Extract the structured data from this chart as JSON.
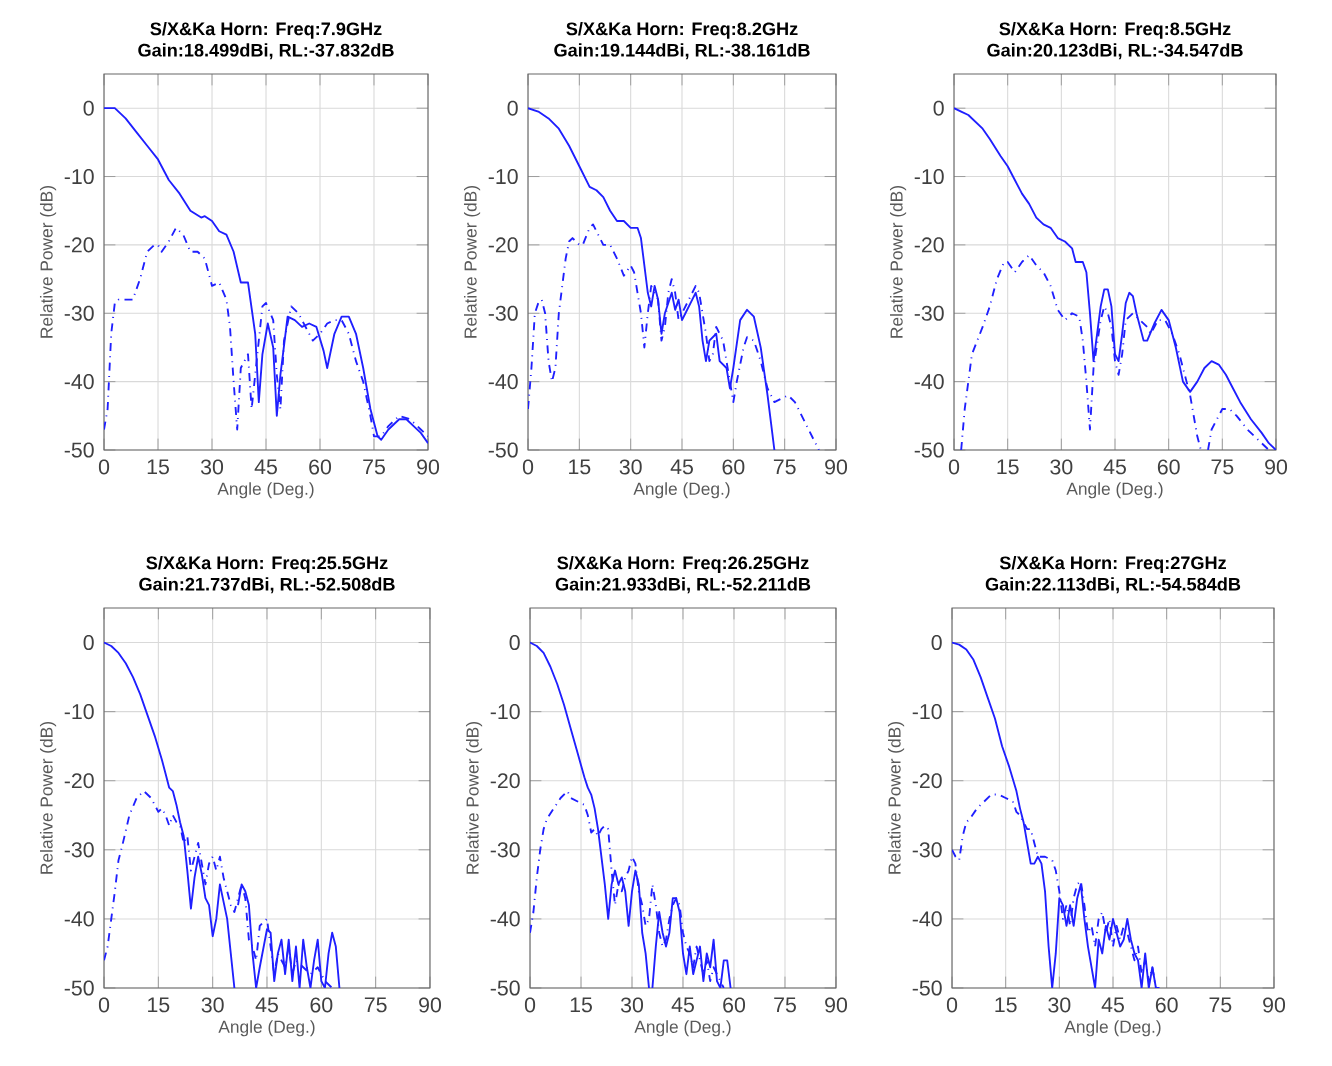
{
  "chart_data": [
    {
      "type": "line",
      "title": "S/X&Ka Horn: Freq:7.9GHz",
      "subtitle": "Gain:18.499dBi, RL:-37.832dB",
      "xlabel": "Angle (Deg.)",
      "ylabel": "Relative Power (dB)",
      "xlim": [
        0,
        90
      ],
      "ylim": [
        -50,
        5
      ],
      "xticks": [
        0,
        15,
        30,
        45,
        60,
        75,
        90
      ],
      "yticks": [
        -50,
        -40,
        -30,
        -20,
        -10,
        0
      ],
      "grid": true,
      "series": [
        {
          "color": "#1f1fff",
          "line_style": "solid",
          "x": [
            0,
            3,
            6,
            9,
            12,
            15,
            18,
            21,
            24,
            27,
            28,
            30,
            32,
            34,
            36,
            38,
            40,
            42,
            43,
            44,
            45.5,
            47,
            48,
            49,
            51,
            53,
            55,
            57,
            59,
            61,
            62,
            64,
            66,
            68,
            70,
            72,
            74,
            76,
            77,
            79,
            82,
            84,
            86,
            88,
            90
          ],
          "values": [
            0,
            0,
            -1.5,
            -3.5,
            -5.5,
            -7.5,
            -10.5,
            -12.5,
            -15,
            -16,
            -15.8,
            -16.5,
            -18,
            -18.5,
            -21,
            -25.5,
            -25.5,
            -33,
            -43,
            -36,
            -31.5,
            -35,
            -45,
            -39,
            -30.5,
            -31,
            -32,
            -31.5,
            -32,
            -35.5,
            -38,
            -33,
            -30.5,
            -30.5,
            -33,
            -38,
            -44,
            -48,
            -48.5,
            -47,
            -45.5,
            -45.5,
            -46.5,
            -47.5,
            -49
          ]
        },
        {
          "color": "#1f1fff",
          "line_style": "dashed",
          "x": [
            0,
            1,
            2,
            3,
            4,
            6,
            8,
            10,
            12,
            14,
            15,
            16,
            18,
            20,
            22,
            24,
            26,
            28,
            30,
            32,
            34,
            35,
            36,
            37,
            38,
            40,
            41,
            42,
            44,
            45,
            47,
            48,
            49,
            50,
            52,
            54,
            56,
            58,
            60,
            62,
            64,
            66,
            68,
            70,
            72,
            74,
            75,
            77,
            79,
            82,
            85,
            88,
            90
          ],
          "values": [
            -47,
            -44,
            -33,
            -28.5,
            -28,
            -28,
            -28,
            -25,
            -21,
            -20,
            -20,
            -21,
            -19.5,
            -17.5,
            -18.5,
            -21,
            -21,
            -22,
            -26,
            -25.5,
            -28,
            -32,
            -40,
            -47,
            -38,
            -36,
            -44,
            -39,
            -29,
            -28.5,
            -31,
            -39,
            -44,
            -34,
            -29,
            -30,
            -32,
            -34,
            -33,
            -31.5,
            -31,
            -31,
            -33,
            -37,
            -40,
            -45,
            -48,
            -48,
            -46.5,
            -45,
            -45.5,
            -47,
            -48
          ]
        }
      ]
    },
    {
      "type": "line",
      "title": "S/X&Ka Horn: Freq:8.2GHz",
      "subtitle": "Gain:19.144dBi, RL:-38.161dB",
      "xlabel": "Angle (Deg.)",
      "ylabel": "Relative Power (dB)",
      "xlim": [
        0,
        90
      ],
      "ylim": [
        -50,
        5
      ],
      "xticks": [
        0,
        15,
        30,
        45,
        60,
        75,
        90
      ],
      "yticks": [
        -50,
        -40,
        -30,
        -20,
        -10,
        0
      ],
      "grid": true,
      "series": [
        {
          "color": "#1f1fff",
          "line_style": "solid",
          "x": [
            0,
            3,
            6,
            9,
            12,
            15,
            18,
            20,
            22,
            24,
            26,
            28,
            30,
            32,
            33,
            35,
            36,
            37,
            38,
            39,
            40,
            42,
            43,
            44,
            45,
            46,
            48,
            49,
            50,
            51,
            52,
            53,
            55,
            56,
            58,
            59,
            60,
            62,
            64,
            66,
            68,
            70,
            71,
            72
          ],
          "values": [
            0,
            -0.5,
            -1.5,
            -3,
            -5.5,
            -8.5,
            -11.5,
            -12,
            -13,
            -15,
            -16.5,
            -16.5,
            -17.5,
            -17.5,
            -19,
            -27,
            -29,
            -26,
            -28,
            -33,
            -30,
            -27,
            -29.5,
            -28,
            -31,
            -30,
            -28,
            -27,
            -29,
            -34,
            -37,
            -34,
            -33,
            -37,
            -38,
            -41,
            -38,
            -31,
            -29.5,
            -30.5,
            -35,
            -42,
            -46,
            -50
          ]
        },
        {
          "color": "#1f1fff",
          "line_style": "dashed",
          "x": [
            0,
            1,
            2,
            3,
            4,
            5,
            6,
            7,
            8,
            9,
            11,
            12,
            13,
            15,
            16,
            18,
            19,
            20,
            22,
            24,
            26,
            28,
            30,
            31,
            33,
            34,
            35,
            36,
            38,
            39,
            40,
            41,
            42,
            43,
            44,
            45,
            47,
            49,
            50,
            51,
            52,
            53,
            54,
            55,
            57,
            59,
            60,
            61,
            63,
            64,
            66,
            68,
            70,
            72,
            74,
            76,
            78,
            80,
            82,
            84,
            85
          ],
          "values": [
            -44,
            -38,
            -30,
            -28.5,
            -28,
            -30,
            -37,
            -40,
            -38,
            -30,
            -22,
            -19.5,
            -19,
            -20,
            -20,
            -17.5,
            -17,
            -18,
            -20,
            -20,
            -22,
            -24.5,
            -23,
            -24,
            -30,
            -35,
            -30,
            -26,
            -28,
            -34,
            -32,
            -27,
            -25,
            -27,
            -31,
            -30,
            -28,
            -26,
            -27,
            -30,
            -33,
            -37,
            -36,
            -32,
            -34,
            -40,
            -43,
            -40,
            -35,
            -33.5,
            -34,
            -37,
            -41,
            -43,
            -42.5,
            -42,
            -43,
            -45,
            -47,
            -49,
            -50
          ]
        }
      ]
    },
    {
      "type": "line",
      "title": "S/X&Ka Horn: Freq:8.5GHz",
      "subtitle": "Gain:20.123dBi, RL:-34.547dB",
      "xlabel": "Angle (Deg.)",
      "ylabel": "Relative Power (dB)",
      "xlim": [
        0,
        90
      ],
      "ylim": [
        -50,
        5
      ],
      "xticks": [
        0,
        15,
        30,
        45,
        60,
        75,
        90
      ],
      "yticks": [
        -50,
        -40,
        -30,
        -20,
        -10,
        0
      ],
      "grid": true,
      "series": [
        {
          "color": "#1f1fff",
          "line_style": "solid",
          "x": [
            0,
            2,
            4,
            6,
            8,
            10,
            13,
            15,
            17,
            19,
            21,
            23,
            25,
            27,
            29,
            31,
            33,
            34,
            36,
            37,
            38,
            39,
            40,
            41,
            42,
            43,
            44,
            45,
            46,
            47,
            48,
            49,
            50,
            51,
            53,
            54,
            56,
            58,
            60,
            62,
            64,
            66,
            68,
            70,
            72,
            74,
            76,
            78,
            80,
            83,
            86,
            88,
            90
          ],
          "values": [
            0,
            -0.5,
            -1,
            -2,
            -3,
            -4.5,
            -7,
            -8.5,
            -10.5,
            -12.5,
            -14,
            -16,
            -17,
            -17.5,
            -19,
            -19.5,
            -20.5,
            -22.5,
            -22.5,
            -24,
            -30,
            -37,
            -33,
            -29,
            -26.5,
            -26.5,
            -29,
            -36,
            -37,
            -33,
            -28.5,
            -27,
            -27.5,
            -30,
            -34,
            -34,
            -31.5,
            -29.5,
            -31,
            -35,
            -40,
            -41.5,
            -40,
            -38,
            -37,
            -37.5,
            -39,
            -41,
            -43,
            -45.5,
            -47.5,
            -49,
            -50
          ]
        },
        {
          "color": "#1f1fff",
          "line_style": "dashed",
          "x": [
            2,
            3,
            5,
            8,
            10,
            12,
            14,
            15,
            17,
            19,
            21,
            23,
            25,
            27,
            29,
            31,
            33,
            35,
            36,
            37,
            38,
            39,
            41,
            42,
            43,
            44,
            45,
            46,
            47,
            48,
            50,
            52,
            54,
            55,
            57,
            59,
            61,
            63,
            65,
            66,
            67,
            68,
            69,
            70,
            71,
            72,
            74,
            75,
            77,
            79,
            82,
            85,
            88
          ],
          "values": [
            -50,
            -44,
            -36,
            -32,
            -29,
            -25,
            -22.5,
            -22.5,
            -24,
            -22.5,
            -21.5,
            -23,
            -24,
            -26,
            -29.5,
            -31,
            -30,
            -30.5,
            -34,
            -40,
            -47,
            -38,
            -31,
            -29,
            -30,
            -32,
            -37,
            -39,
            -36,
            -31,
            -30,
            -31,
            -32,
            -33,
            -31,
            -31,
            -33,
            -36,
            -40,
            -42,
            -45,
            -48,
            -50,
            null,
            -50,
            -47,
            -45,
            -44,
            -44,
            -45,
            -47,
            -48.5,
            -50
          ]
        }
      ]
    },
    {
      "type": "line",
      "title": "S/X&Ka Horn: Freq:25.5GHz",
      "subtitle": "Gain:21.737dBi, RL:-52.508dB",
      "xlabel": "Angle (Deg.)",
      "ylabel": "Relative Power (dB)",
      "xlim": [
        0,
        90
      ],
      "ylim": [
        -50,
        5
      ],
      "xticks": [
        0,
        15,
        30,
        45,
        60,
        75,
        90
      ],
      "yticks": [
        -50,
        -40,
        -30,
        -20,
        -10,
        0
      ],
      "grid": true,
      "series": [
        {
          "color": "#1f1fff",
          "line_style": "solid",
          "x": [
            0,
            2,
            4,
            6,
            8,
            10,
            12,
            14,
            16,
            17,
            18,
            19,
            20,
            21,
            22,
            23,
            24,
            25,
            26,
            27,
            28,
            29,
            30,
            31,
            32,
            33,
            34,
            35,
            36,
            36.5,
            37,
            38,
            39,
            40,
            41,
            42,
            43,
            45,
            46,
            47,
            48,
            49,
            50,
            51,
            52,
            53,
            54,
            55,
            56,
            57,
            58,
            59,
            60,
            61,
            62,
            63,
            64,
            65
          ],
          "values": [
            0,
            -0.5,
            -1.5,
            -3,
            -5,
            -7.5,
            -10.5,
            -13.5,
            -17,
            -19,
            -21,
            -21.5,
            -23.5,
            -26,
            -28,
            -33,
            -38.5,
            -34,
            -31,
            -33.5,
            -37,
            -38,
            -42.5,
            -40,
            -35,
            -37.5,
            -40,
            -45,
            -50,
            null,
            -38,
            -35,
            -36,
            -38,
            -45,
            -50,
            -47,
            -41.5,
            -42,
            -49,
            -45,
            -43,
            -48,
            -43,
            -49,
            -44,
            -50,
            -43,
            -47,
            -50,
            -46,
            -43,
            -49,
            -50,
            -45,
            -42,
            -44,
            -50
          ]
        },
        {
          "color": "#1f1fff",
          "line_style": "dashed",
          "x": [
            0,
            1,
            2,
            3,
            4,
            5,
            7,
            9,
            11,
            13,
            15,
            16,
            17,
            18,
            19,
            20,
            21,
            22,
            23,
            24,
            25,
            26,
            27,
            28,
            29,
            30,
            31,
            32,
            33,
            34,
            35,
            36,
            37,
            38,
            39,
            40,
            41,
            42,
            43,
            45,
            46,
            47,
            48,
            50,
            51,
            52,
            53,
            55,
            57,
            59,
            61,
            63
          ],
          "values": [
            -46,
            -44,
            -40,
            -36,
            -31.5,
            -29.5,
            -25,
            -22.5,
            -21.5,
            -22.5,
            -24.5,
            -24,
            -25,
            -26.5,
            -25,
            -26,
            -26.5,
            -29,
            -28,
            -33,
            -31,
            -29,
            -32,
            -35,
            -32,
            -31,
            -33,
            -31,
            -34,
            -36,
            -38,
            -39,
            -37,
            -35,
            -37,
            -43,
            -44,
            -46,
            -41,
            -40,
            -44,
            -48,
            -45,
            -47,
            -44,
            -48,
            -46,
            -47,
            -48,
            -47,
            -49,
            -50
          ]
        }
      ]
    },
    {
      "type": "line",
      "title": "S/X&Ka Horn: Freq:26.25GHz",
      "subtitle": "Gain:21.933dBi, RL:-52.211dB",
      "xlabel": "Angle (Deg.)",
      "ylabel": "Relative Power (dB)",
      "xlim": [
        0,
        90
      ],
      "ylim": [
        -50,
        5
      ],
      "xticks": [
        0,
        15,
        30,
        45,
        60,
        75,
        90
      ],
      "yticks": [
        -50,
        -40,
        -30,
        -20,
        -10,
        0
      ],
      "grid": true,
      "series": [
        {
          "color": "#1f1fff",
          "line_style": "solid",
          "x": [
            0,
            2,
            4,
            6,
            8,
            10,
            12,
            14,
            16,
            17,
            18,
            19,
            20,
            21,
            22,
            23,
            24,
            25,
            26,
            27,
            28,
            29,
            30,
            31,
            32,
            33,
            34,
            35,
            35.5,
            36,
            37,
            38,
            39,
            40,
            41,
            42,
            43,
            44,
            45,
            46,
            47,
            48,
            49,
            50,
            51,
            52,
            53,
            54,
            55,
            56,
            57,
            58,
            59
          ],
          "values": [
            0,
            -0.5,
            -1.5,
            -3.5,
            -6,
            -9,
            -12.5,
            -16,
            -19.5,
            -21,
            -22,
            -24,
            -27,
            -31,
            -35,
            -40,
            -35,
            -33,
            -35,
            -34,
            -36,
            -41,
            -36,
            -33,
            -35,
            -42,
            -45,
            -50,
            null,
            -50,
            -44,
            -39,
            -42,
            -44,
            -42,
            -37,
            -37,
            -39,
            -45,
            -48,
            -44,
            -48,
            -46,
            -44,
            -49,
            -45,
            -47,
            -43,
            -49,
            -50,
            -46,
            -46,
            -50
          ]
        },
        {
          "color": "#1f1fff",
          "line_style": "dashed",
          "x": [
            0,
            1,
            2,
            3,
            4,
            5,
            7,
            9,
            11,
            12,
            14,
            16,
            17,
            18,
            19,
            20,
            21,
            22,
            23,
            24,
            25,
            26,
            27,
            28,
            29,
            30,
            31,
            32,
            33,
            34,
            35,
            36,
            37,
            38,
            39,
            40,
            41,
            42,
            43,
            44,
            45,
            46,
            47,
            48,
            49,
            50,
            51,
            52,
            53,
            54,
            55,
            56,
            57
          ],
          "values": [
            -42,
            -39,
            -34,
            -30,
            -27,
            -25.5,
            -24,
            -22.5,
            -21.5,
            -22.5,
            -23,
            -23.5,
            -25,
            -27.5,
            -27,
            -28,
            -27,
            -26.5,
            -27,
            -33,
            -38,
            -35,
            -36,
            -34,
            -33,
            -31,
            -32,
            -36,
            -38,
            -41,
            -40,
            -35,
            -38,
            -42,
            -44,
            -43,
            -40,
            -38,
            -37,
            -38,
            -42,
            -44,
            -45,
            -47,
            -44,
            -46,
            -48,
            -46,
            -49,
            -47,
            -48,
            -49,
            -50
          ]
        }
      ]
    },
    {
      "type": "line",
      "title": "S/X&Ka Horn: Freq:27GHz",
      "subtitle": "Gain:22.113dBi, RL:-54.584dB",
      "xlabel": "Angle (Deg.)",
      "ylabel": "Relative Power (dB)",
      "xlim": [
        0,
        90
      ],
      "ylim": [
        -50,
        5
      ],
      "xticks": [
        0,
        15,
        30,
        45,
        60,
        75,
        90
      ],
      "yticks": [
        -50,
        -40,
        -30,
        -20,
        -10,
        0
      ],
      "grid": true,
      "series": [
        {
          "color": "#1f1fff",
          "line_style": "solid",
          "x": [
            0,
            2,
            4,
            6,
            8,
            10,
            12,
            14,
            16,
            18,
            19,
            20,
            21,
            22,
            23,
            24,
            25,
            26,
            27,
            28,
            29,
            30,
            31,
            32,
            33,
            34,
            35,
            36,
            37,
            38,
            39,
            40,
            41,
            42,
            43,
            44,
            45,
            46,
            47,
            48,
            49,
            50,
            51,
            52,
            53,
            54,
            55,
            56,
            57,
            58
          ],
          "values": [
            0,
            -0.3,
            -1,
            -2.5,
            -5,
            -8,
            -11,
            -15,
            -18,
            -21.5,
            -24,
            -26,
            -29,
            -32,
            -32,
            -31,
            -32,
            -36,
            -44,
            -50,
            -45,
            -37,
            -38,
            -41,
            -38,
            -41,
            -37,
            -35,
            -40,
            -44,
            -47,
            -50,
            -43,
            -45,
            -41,
            -43,
            -40,
            -42,
            -44,
            -43,
            -40,
            -43,
            -45,
            -46,
            -50,
            -45,
            -50,
            -47,
            -50,
            -50
          ]
        },
        {
          "color": "#1f1fff",
          "line_style": "dashed",
          "x": [
            0,
            1,
            2,
            3,
            4,
            5,
            7,
            9,
            11,
            13,
            15,
            17,
            18,
            19,
            20,
            21,
            22,
            23,
            24,
            26,
            28,
            29,
            30,
            31,
            32,
            33,
            34,
            35,
            36,
            37,
            38,
            39,
            40,
            41,
            42,
            43,
            44,
            45,
            46,
            47,
            48,
            49,
            50,
            51,
            52,
            53,
            54,
            55,
            56,
            57
          ],
          "values": [
            -30,
            -31,
            -31.5,
            -28,
            -26,
            -25.5,
            -24,
            -23,
            -22,
            -22,
            -22.5,
            -23,
            -24.5,
            -25,
            -26,
            -27,
            -27,
            -29,
            -31,
            -31,
            -31.5,
            -33,
            -36,
            -40,
            -38,
            -41,
            -37,
            -35,
            -34.5,
            -38,
            -42,
            -41,
            -44,
            -40,
            -39,
            -42,
            -40,
            -44,
            -41,
            -43,
            -41,
            -42,
            -44,
            -46,
            -44,
            -48,
            -46,
            -49,
            -47,
            -50
          ]
        }
      ]
    }
  ]
}
